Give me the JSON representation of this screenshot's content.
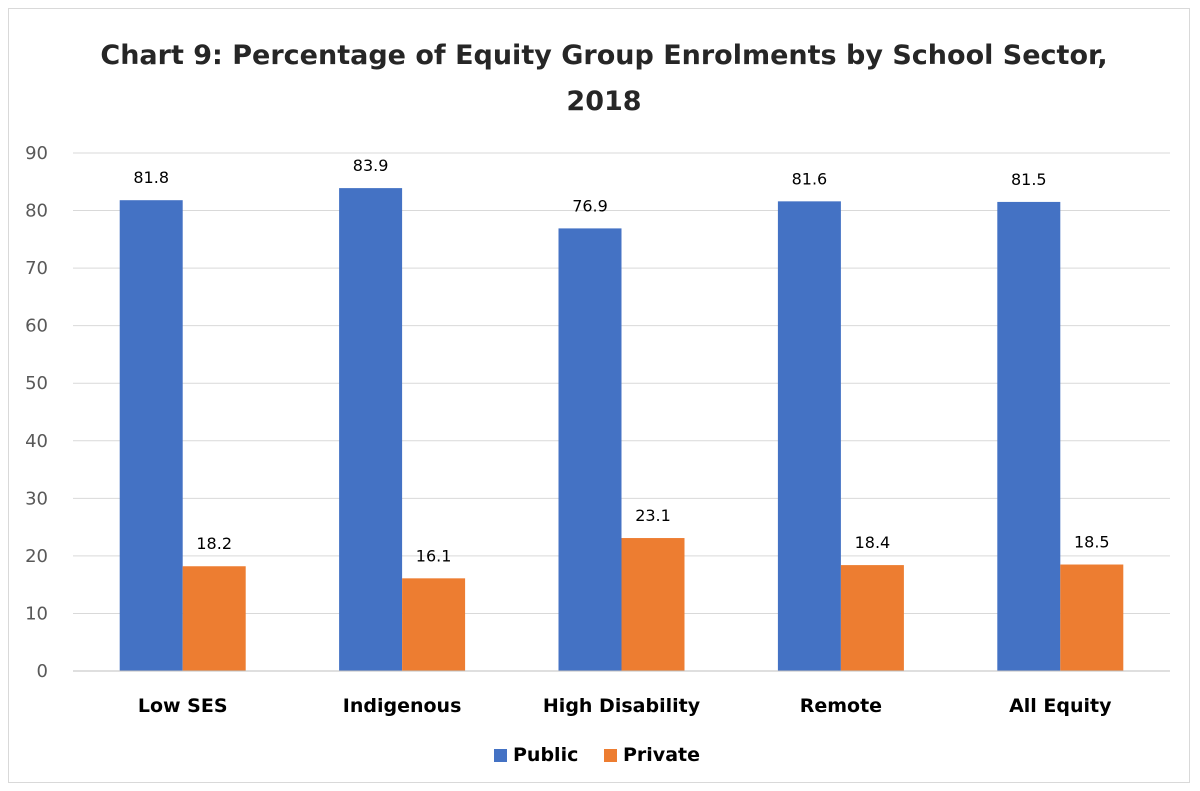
{
  "chart_data": {
    "type": "bar",
    "title_line1": "Chart 9: Percentage of Equity Group Enrolments by School Sector,",
    "title_line2": "2018",
    "categories": [
      "Low SES",
      "Indigenous",
      "High Disability",
      "Remote",
      "All Equity"
    ],
    "series": [
      {
        "name": "Public",
        "color": "#4472c4",
        "values": [
          81.8,
          83.9,
          76.9,
          81.6,
          81.5
        ]
      },
      {
        "name": "Private",
        "color": "#ed7d31",
        "values": [
          18.2,
          16.1,
          23.1,
          18.4,
          18.5
        ]
      }
    ],
    "ylim": [
      0,
      90
    ],
    "yticks": [
      0,
      10,
      20,
      30,
      40,
      50,
      60,
      70,
      80,
      90
    ],
    "grid": true,
    "legend_position": "bottom",
    "xlabel": "",
    "ylabel": ""
  }
}
